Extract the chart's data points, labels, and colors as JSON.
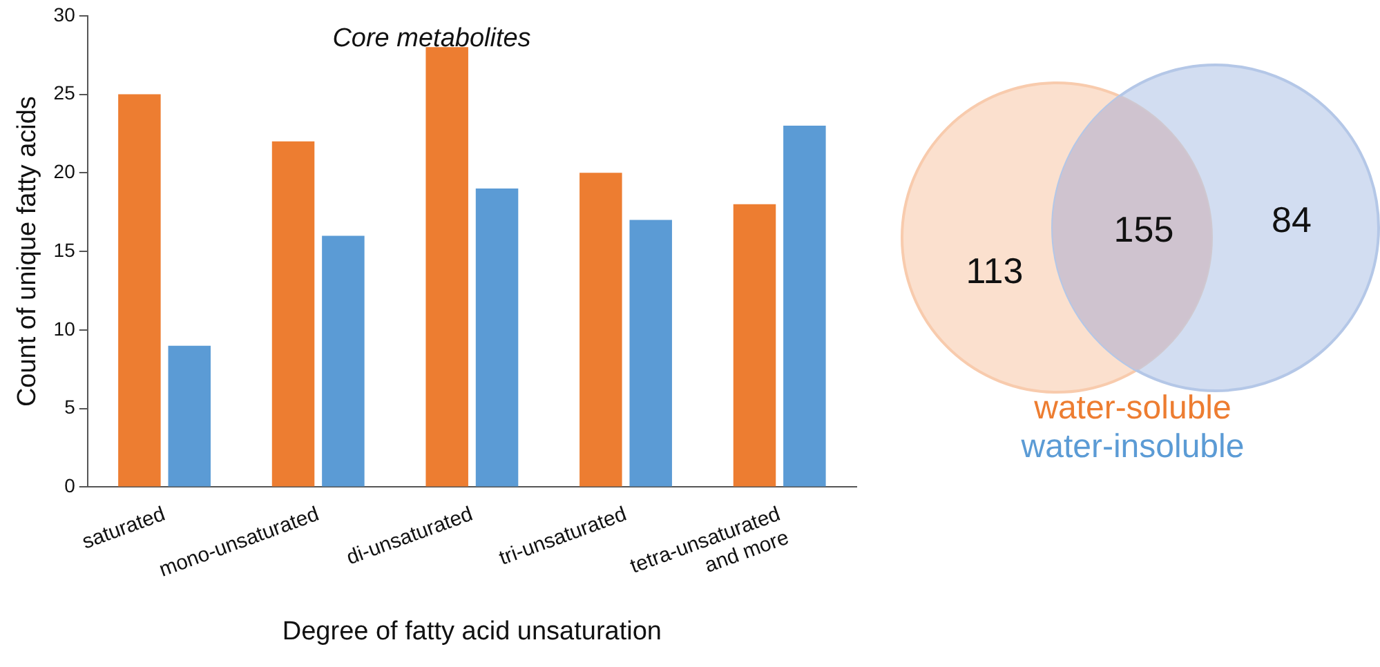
{
  "chart_data": [
    {
      "type": "bar",
      "title": "Core metabolites",
      "xlabel": "Degree of fatty acid unsaturation",
      "ylabel": "Count of unique fatty acids",
      "categories": [
        "saturated",
        "mono-unsaturated",
        "di-unsaturated",
        "tri-unsaturated",
        "tetra-unsaturated and more"
      ],
      "series": [
        {
          "name": "water-soluble",
          "color": "#ed7d31",
          "values": [
            25,
            22,
            28,
            20,
            18
          ]
        },
        {
          "name": "water-insoluble",
          "color": "#5b9bd5",
          "values": [
            9,
            16,
            19,
            17,
            23
          ]
        }
      ],
      "ylim": [
        0,
        30
      ],
      "yticks": [
        0,
        5,
        10,
        15,
        20,
        25,
        30
      ],
      "grid": false,
      "legend": "right"
    },
    {
      "type": "other",
      "annotations": [
        "113",
        "155",
        "84"
      ],
      "colors": [
        "#f8cbad",
        "#cfc3cf",
        "#b4c7e7"
      ]
    }
  ]
}
